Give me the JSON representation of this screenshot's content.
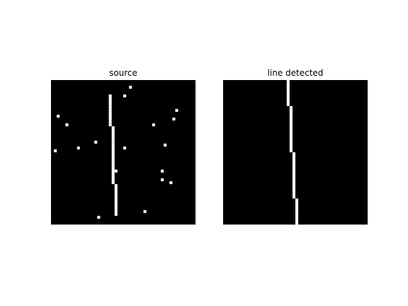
{
  "chart_data": [
    {
      "type": "heatmap",
      "title": "source",
      "axes": "off",
      "grid_size": [
        50,
        50
      ],
      "colormap": [
        "#000000",
        "#ffffff"
      ],
      "lit_pixels": [
        [
          27,
          2
        ],
        [
          25,
          5
        ],
        [
          20,
          5
        ],
        [
          20,
          6
        ],
        [
          20,
          7
        ],
        [
          20,
          8
        ],
        [
          20,
          9
        ],
        [
          20,
          10
        ],
        [
          20,
          11
        ],
        [
          20,
          12
        ],
        [
          20,
          13
        ],
        [
          20,
          14
        ],
        [
          20,
          15
        ],
        [
          21,
          16
        ],
        [
          21,
          17
        ],
        [
          21,
          18
        ],
        [
          21,
          19
        ],
        [
          21,
          20
        ],
        [
          21,
          21
        ],
        [
          21,
          22
        ],
        [
          21,
          23
        ],
        [
          21,
          24
        ],
        [
          21,
          25
        ],
        [
          21,
          26
        ],
        [
          21,
          27
        ],
        [
          21,
          28
        ],
        [
          21,
          29
        ],
        [
          21,
          30
        ],
        [
          21,
          31
        ],
        [
          21,
          32
        ],
        [
          21,
          33
        ],
        [
          21,
          34
        ],
        [
          21,
          35
        ],
        [
          22,
          36
        ],
        [
          22,
          37
        ],
        [
          22,
          38
        ],
        [
          22,
          39
        ],
        [
          22,
          40
        ],
        [
          22,
          41
        ],
        [
          22,
          42
        ],
        [
          22,
          43
        ],
        [
          22,
          44
        ],
        [
          22,
          45
        ],
        [
          22,
          46
        ],
        [
          2,
          12
        ],
        [
          43,
          10
        ],
        [
          42,
          13
        ],
        [
          5,
          15
        ],
        [
          35,
          15
        ],
        [
          15,
          21
        ],
        [
          9,
          23
        ],
        [
          25,
          23
        ],
        [
          39,
          22
        ],
        [
          1,
          24
        ],
        [
          22,
          31
        ],
        [
          38,
          31
        ],
        [
          38,
          34
        ],
        [
          41,
          35
        ],
        [
          32,
          45
        ],
        [
          16,
          47
        ]
      ]
    },
    {
      "type": "heatmap",
      "title": "line detected",
      "axes": "off",
      "grid_size": [
        50,
        50
      ],
      "colormap": [
        "#000000",
        "#ffffff"
      ],
      "segments": [
        {
          "col": 22,
          "rows": [
            0,
            8
          ]
        },
        {
          "col": 23,
          "rows": [
            9,
            24
          ]
        },
        {
          "col": 24,
          "rows": [
            25,
            40
          ]
        },
        {
          "col": 25,
          "rows": [
            41,
            49
          ]
        }
      ]
    }
  ]
}
